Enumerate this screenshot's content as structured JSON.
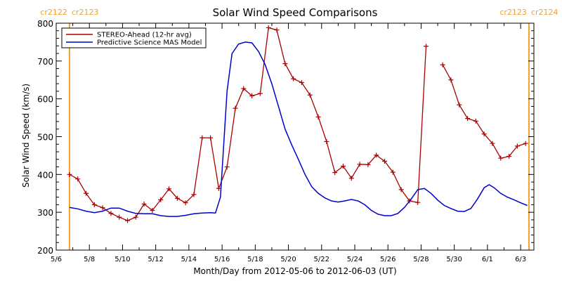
{
  "chart_data": {
    "type": "line",
    "title": "Solar Wind Speed Comparisons",
    "xlabel": "Month/Day from 2012-05-06 to 2012-06-03 (UT)",
    "ylabel": "Solar Wind Speed (km/s)",
    "x_range_days": [
      0,
      28.8
    ],
    "ylim": [
      200,
      800
    ],
    "y_ticks": [
      200,
      300,
      400,
      500,
      600,
      700,
      800
    ],
    "x_ticks": [
      {
        "day": 0,
        "label": "5/6"
      },
      {
        "day": 2,
        "label": "5/8"
      },
      {
        "day": 4,
        "label": "5/10"
      },
      {
        "day": 6,
        "label": "5/12"
      },
      {
        "day": 8,
        "label": "5/14"
      },
      {
        "day": 10,
        "label": "5/16"
      },
      {
        "day": 12,
        "label": "5/18"
      },
      {
        "day": 14,
        "label": "5/20"
      },
      {
        "day": 16,
        "label": "5/22"
      },
      {
        "day": 18,
        "label": "5/24"
      },
      {
        "day": 20,
        "label": "5/26"
      },
      {
        "day": 22,
        "label": "5/28"
      },
      {
        "day": 24,
        "label": "5/30"
      },
      {
        "day": 26,
        "label": "6/1"
      },
      {
        "day": 28,
        "label": "6/3"
      }
    ],
    "carrington_markers": [
      {
        "day": 0.8,
        "label_left": "cr2122",
        "label_right": "cr2123"
      },
      {
        "day": 28.5,
        "label_left": "cr2123",
        "label_right": "cr2124"
      }
    ],
    "colors": {
      "stereo": "#aa0000",
      "model": "#0000cc",
      "marker": "#f0a030"
    },
    "legend_position": "top-left",
    "series": [
      {
        "name": "STEREO-Ahead (12-hr avg)",
        "style": "line-plus-markers",
        "segments": [
          [
            [
              0.8,
              400
            ],
            [
              1.3,
              388
            ],
            [
              1.8,
              350
            ],
            [
              2.3,
              320
            ],
            [
              2.8,
              312
            ],
            [
              3.3,
              297
            ],
            [
              3.8,
              287
            ],
            [
              4.3,
              278
            ],
            [
              4.8,
              287
            ],
            [
              5.3,
              322
            ],
            [
              5.8,
              305
            ],
            [
              6.3,
              333
            ],
            [
              6.8,
              362
            ],
            [
              7.3,
              337
            ],
            [
              7.8,
              325
            ],
            [
              8.3,
              347
            ],
            [
              8.8,
              497
            ],
            [
              9.3,
              497
            ],
            [
              9.8,
              363
            ],
            [
              10.3,
              420
            ],
            [
              10.8,
              575
            ],
            [
              11.3,
              627
            ],
            [
              11.8,
              608
            ],
            [
              12.3,
              614
            ],
            [
              12.8,
              788
            ],
            [
              13.3,
              782
            ],
            [
              13.8,
              693
            ],
            [
              14.3,
              653
            ],
            [
              14.8,
              643
            ],
            [
              15.3,
              610
            ],
            [
              15.8,
              552
            ],
            [
              16.3,
              487
            ],
            [
              16.8,
              405
            ],
            [
              17.3,
              422
            ],
            [
              17.8,
              390
            ],
            [
              18.3,
              427
            ],
            [
              18.8,
              426
            ],
            [
              19.3,
              451
            ],
            [
              19.8,
              435
            ],
            [
              20.3,
              406
            ],
            [
              20.8,
              360
            ],
            [
              21.3,
              330
            ],
            [
              21.8,
              326
            ],
            [
              22.3,
              739
            ]
          ],
          [
            [
              23.3,
              690
            ],
            [
              23.8,
              650
            ],
            [
              24.3,
              584
            ],
            [
              24.8,
              548
            ],
            [
              25.3,
              541
            ],
            [
              25.8,
              507
            ],
            [
              26.3,
              482
            ],
            [
              26.8,
              443
            ],
            [
              27.3,
              448
            ],
            [
              27.8,
              475
            ],
            [
              28.3,
              482
            ]
          ]
        ]
      },
      {
        "name": "Predictive Science MAS Model",
        "style": "line",
        "segments": [
          [
            [
              0.8,
              313
            ],
            [
              1.3,
              309
            ],
            [
              1.8,
              303
            ],
            [
              2.3,
              299
            ],
            [
              2.8,
              303
            ],
            [
              3.3,
              311
            ],
            [
              3.8,
              311
            ],
            [
              4.3,
              303
            ],
            [
              4.8,
              297
            ],
            [
              5.3,
              296
            ],
            [
              5.8,
              296
            ],
            [
              6.3,
              291
            ],
            [
              6.8,
              289
            ],
            [
              7.3,
              289
            ],
            [
              7.8,
              292
            ],
            [
              8.3,
              296
            ],
            [
              8.8,
              298
            ],
            [
              9.3,
              299
            ],
            [
              9.6,
              298
            ],
            [
              9.9,
              340
            ],
            [
              10.1,
              480
            ],
            [
              10.3,
              620
            ],
            [
              10.6,
              720
            ],
            [
              11.0,
              745
            ],
            [
              11.4,
              750
            ],
            [
              11.8,
              748
            ],
            [
              12.2,
              725
            ],
            [
              12.6,
              690
            ],
            [
              13.0,
              640
            ],
            [
              13.4,
              580
            ],
            [
              13.8,
              520
            ],
            [
              14.2,
              478
            ],
            [
              14.6,
              440
            ],
            [
              15.0,
              400
            ],
            [
              15.4,
              368
            ],
            [
              15.8,
              350
            ],
            [
              16.2,
              338
            ],
            [
              16.6,
              330
            ],
            [
              17.0,
              327
            ],
            [
              17.4,
              330
            ],
            [
              17.8,
              334
            ],
            [
              18.2,
              330
            ],
            [
              18.6,
              320
            ],
            [
              19.0,
              305
            ],
            [
              19.4,
              295
            ],
            [
              19.8,
              291
            ],
            [
              20.2,
              291
            ],
            [
              20.6,
              297
            ],
            [
              21.0,
              313
            ],
            [
              21.4,
              335
            ],
            [
              21.8,
              360
            ],
            [
              22.2,
              363
            ],
            [
              22.6,
              350
            ],
            [
              23.0,
              332
            ],
            [
              23.4,
              318
            ],
            [
              23.8,
              310
            ],
            [
              24.2,
              303
            ],
            [
              24.6,
              302
            ],
            [
              25.0,
              310
            ],
            [
              25.4,
              335
            ],
            [
              25.8,
              365
            ],
            [
              26.1,
              373
            ],
            [
              26.4,
              365
            ],
            [
              26.8,
              350
            ],
            [
              27.2,
              340
            ],
            [
              27.6,
              333
            ],
            [
              28.0,
              325
            ],
            [
              28.4,
              318
            ]
          ]
        ]
      }
    ]
  }
}
